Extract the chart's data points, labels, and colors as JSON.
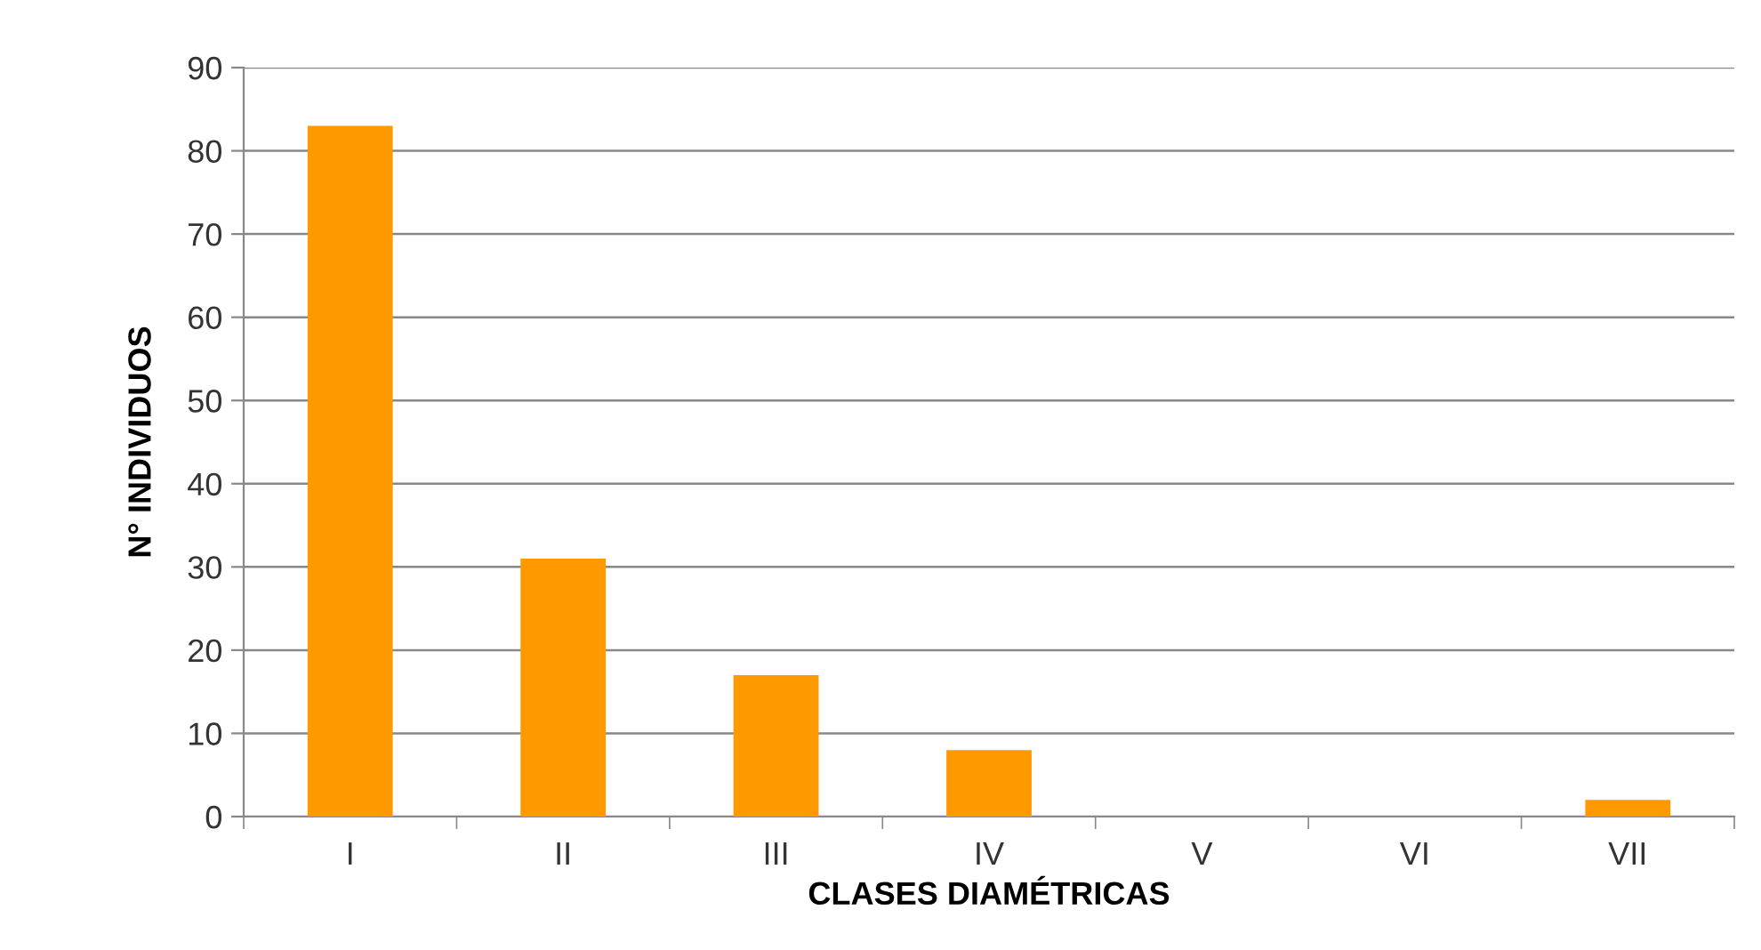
{
  "chart_data": {
    "type": "bar",
    "xlabel": "CLASES DIAMÉTRICAS",
    "ylabel": "N° INDIVIDUOS",
    "categories": [
      "I",
      "II",
      "III",
      "IV",
      "V",
      "VI",
      "VII"
    ],
    "values": [
      83,
      31,
      17,
      8,
      0,
      0,
      2
    ],
    "color": "#ff9900",
    "ylim": [
      0,
      90
    ],
    "yticks": [
      0,
      10,
      20,
      30,
      40,
      50,
      60,
      70,
      80,
      90
    ],
    "grid": "y",
    "legend": false
  }
}
